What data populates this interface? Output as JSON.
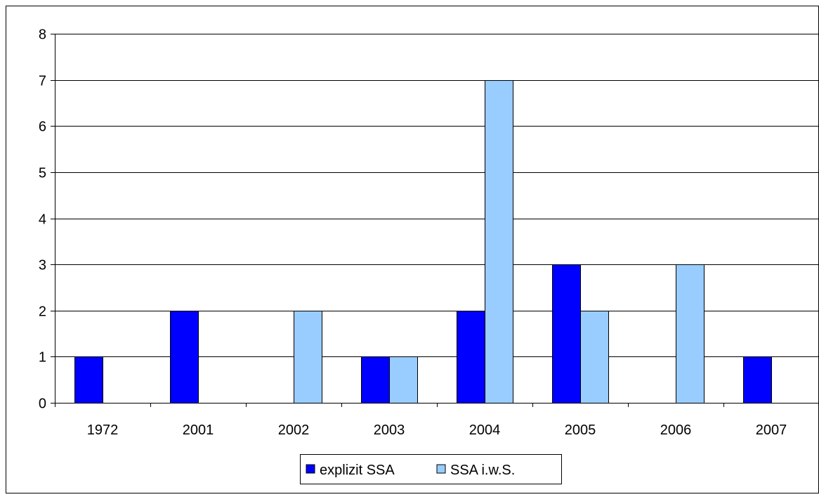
{
  "chart_data": {
    "type": "bar",
    "title": "",
    "xlabel": "",
    "ylabel": "",
    "categories": [
      "1972",
      "2001",
      "2002",
      "2003",
      "2004",
      "2005",
      "2006",
      "2007"
    ],
    "series": [
      {
        "name": "explizit SSA",
        "color": "#0000ff",
        "values": [
          1,
          2,
          0,
          1,
          2,
          3,
          0,
          1
        ]
      },
      {
        "name": "SSA i.w.S.",
        "color": "#99ccff",
        "values": [
          0,
          0,
          2,
          1,
          7,
          2,
          3,
          0
        ]
      }
    ],
    "ylim": [
      0,
      8
    ],
    "yticks": [
      "0",
      "1",
      "2",
      "3",
      "4",
      "5",
      "6",
      "7",
      "8"
    ],
    "grid": true,
    "legend_position": "bottom"
  }
}
